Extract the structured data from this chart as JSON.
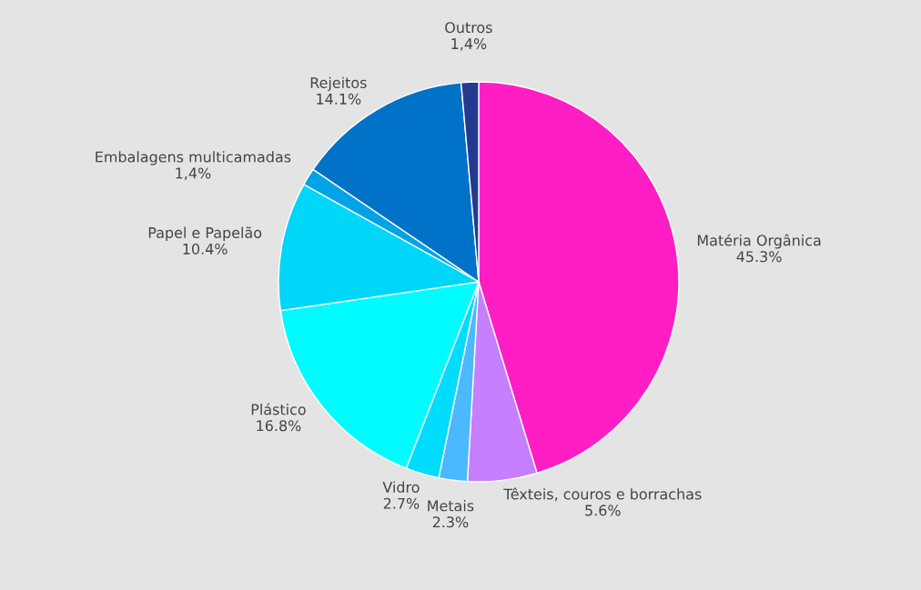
{
  "chart_data": {
    "type": "pie",
    "categories": [
      "Matéria Orgânica",
      "Têxteis, couros e borrachas",
      "Metais",
      "Vidro",
      "Plástico",
      "Papel e Papelão",
      "Embalagens multicamadas",
      "Rejeitos",
      "Outros"
    ],
    "values": [
      45.3,
      5.6,
      2.3,
      2.7,
      16.8,
      10.4,
      1.4,
      14.1,
      1.4
    ],
    "value_labels": [
      "45.3%",
      "5.6%",
      "2.3%",
      "2.7%",
      "16.8%",
      "10.4%",
      "1,4%",
      "14.1%",
      "1,4%"
    ],
    "colors": [
      "#ff1ec4",
      "#c57fff",
      "#4cb8ff",
      "#00dcfc",
      "#00fcff",
      "#00d6f8",
      "#00a3e6",
      "#0072c8",
      "#233a8e"
    ],
    "legend": false
  }
}
